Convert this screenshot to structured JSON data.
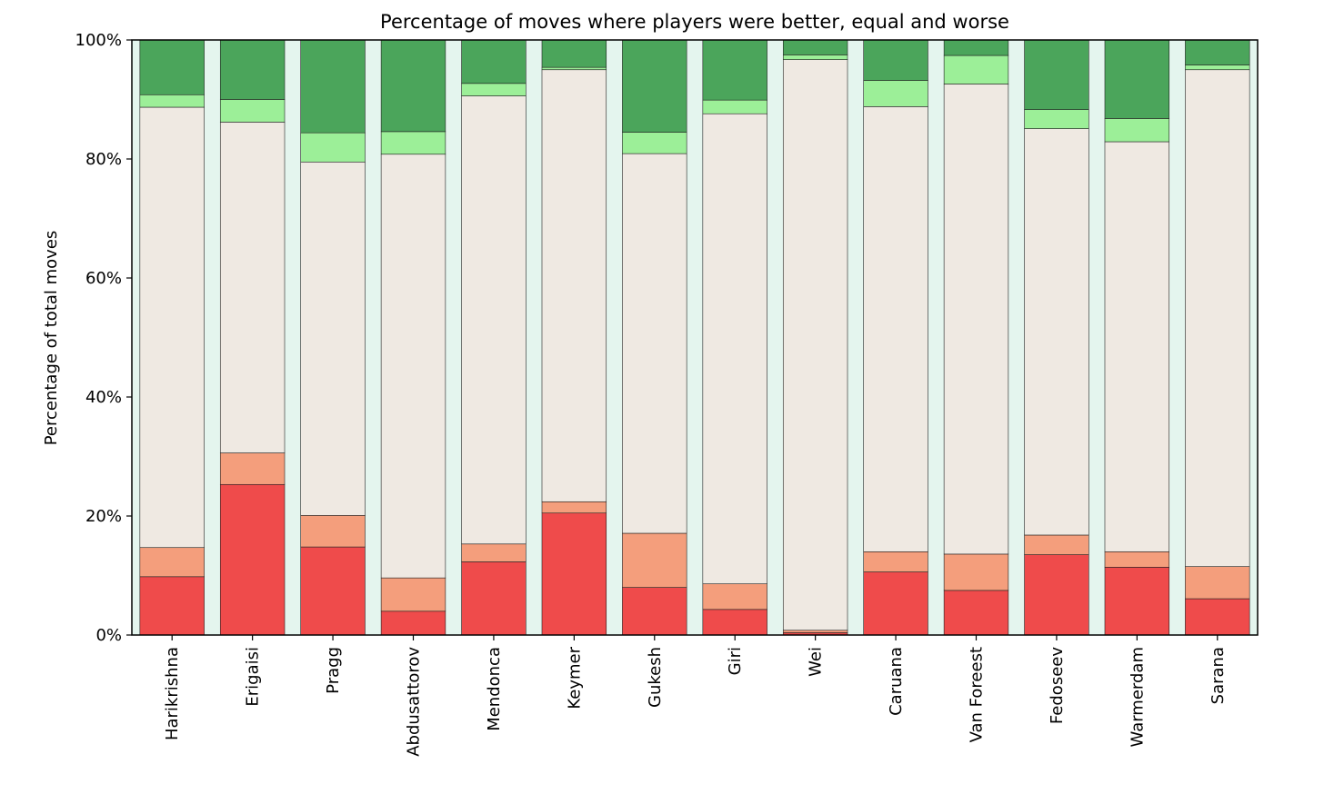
{
  "chart_data": {
    "type": "bar",
    "stacked": true,
    "title": "Percentage of moves where players were better, equal and worse",
    "xlabel": "",
    "ylabel": "Percentage of total moves",
    "ylim": [
      0,
      100
    ],
    "yticks": [
      "0%",
      "20%",
      "40%",
      "60%",
      "80%",
      "100%"
    ],
    "grid": false,
    "legend": "none",
    "categories": [
      "Harikrishna",
      "Erigaisi",
      "Pragg",
      "Abdusattorov",
      "Mendonca",
      "Keymer",
      "Gukesh",
      "Giri",
      "Wei",
      "Caruana",
      "Van Foreest",
      "Fedoseev",
      "Warmerdam",
      "Sarana"
    ],
    "series": [
      {
        "color": "#ef4b4b",
        "values": [
          9.8,
          25.3,
          14.8,
          4.0,
          12.3,
          20.5,
          8.0,
          4.3,
          0.4,
          10.6,
          7.5,
          13.5,
          11.4,
          6.1
        ]
      },
      {
        "color": "#f49e7c",
        "values": [
          4.9,
          5.3,
          5.3,
          5.6,
          3.0,
          1.9,
          9.1,
          4.3,
          0.4,
          3.4,
          6.1,
          3.3,
          2.6,
          5.4
        ]
      },
      {
        "color": "#efe9e2",
        "values": [
          74.0,
          55.6,
          59.4,
          71.2,
          75.3,
          72.6,
          63.8,
          79.0,
          95.9,
          74.8,
          79.0,
          68.3,
          68.9,
          83.5
        ]
      },
      {
        "color": "#9cef98",
        "values": [
          2.1,
          3.8,
          4.9,
          3.8,
          2.1,
          0.4,
          3.6,
          2.3,
          0.8,
          4.4,
          4.8,
          3.2,
          3.9,
          0.8
        ]
      },
      {
        "color": "#4ba55b",
        "values": [
          9.2,
          10.0,
          15.6,
          15.4,
          7.3,
          4.6,
          15.5,
          10.1,
          2.5,
          6.8,
          2.6,
          11.7,
          13.2,
          4.2
        ]
      }
    ],
    "colors": {
      "plot_background": "#e4f5ee",
      "bar_edge": "#222222"
    }
  }
}
